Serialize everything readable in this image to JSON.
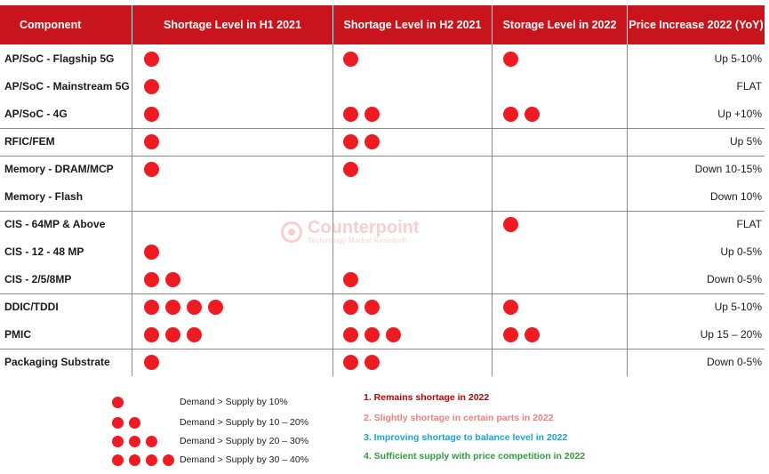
{
  "chart_data": {
    "type": "table",
    "headers": [
      "Component",
      "Shortage Level in H1 2021",
      "Shortage Level in H2 2021",
      "Storage Level in 2022",
      "Price Increase 2022 (YoY)"
    ],
    "rows": [
      {
        "component": "AP/SoC - Flagship 5G",
        "h1": 1,
        "h2": 1,
        "y2022": 1,
        "price": "Up 5-10%"
      },
      {
        "component": "AP/SoC - Mainstream 5G",
        "h1": 1,
        "h2": 0,
        "y2022": 0,
        "price": "FLAT"
      },
      {
        "component": "AP/SoC - 4G",
        "h1": 1,
        "h2": 2,
        "y2022": 2,
        "price": "Up +10%"
      },
      {
        "component": "RFIC/FEM",
        "h1": 1,
        "h2": 2,
        "y2022": 0,
        "price": "Up 5%"
      },
      {
        "component": "Memory - DRAM/MCP",
        "h1": 1,
        "h2": 1,
        "y2022": 0,
        "price": "Down 10-15%"
      },
      {
        "component": "Memory - Flash",
        "h1": 0,
        "h2": 0,
        "y2022": 0,
        "price": "Down 10%"
      },
      {
        "component": "CIS - 64MP & Above",
        "h1": 0,
        "h2": 0,
        "y2022": 1,
        "price": "FLAT"
      },
      {
        "component": "CIS - 12 - 48 MP",
        "h1": 1,
        "h2": 0,
        "y2022": 0,
        "price": "Up 0-5%"
      },
      {
        "component": "CIS - 2/5/8MP",
        "h1": 2,
        "h2": 1,
        "y2022": 0,
        "price": "Down 0-5%"
      },
      {
        "component": "DDIC/TDDI",
        "h1": 4,
        "h2": 2,
        "y2022": 1,
        "price": "Up 5-10%"
      },
      {
        "component": "PMIC",
        "h1": 3,
        "h2": 3,
        "y2022": 2,
        "price": "Up 15 – 20%"
      },
      {
        "component": "Packaging Substrate",
        "h1": 1,
        "h2": 2,
        "y2022": 0,
        "price": "Down 0-5%"
      }
    ],
    "legend": [
      {
        "dots": 1,
        "label": "Demand > Supply by 10%"
      },
      {
        "dots": 2,
        "label": "Demand > Supply by 10 – 20%"
      },
      {
        "dots": 3,
        "label": "Demand > Supply by 20 – 30%"
      },
      {
        "dots": 4,
        "label": "Demand > Supply by 30 – 40%"
      }
    ],
    "notes": [
      {
        "text": "1. Remains shortage in 2022",
        "color": "#c00000"
      },
      {
        "text": "2. Slightly shortage in certain parts in 2022",
        "color": "#f08080"
      },
      {
        "text": "3. Improving shortage to balance level in 2022",
        "color": "#1aa3d9"
      },
      {
        "text": "4. Sufficient supply with price competition in 2022",
        "color": "#2e9e3e"
      }
    ],
    "colors": {
      "header": "#c8141c",
      "dot": "#ee1c22"
    }
  },
  "watermark": {
    "name": "Counterpoint",
    "tagline": "Technology Market Research"
  }
}
